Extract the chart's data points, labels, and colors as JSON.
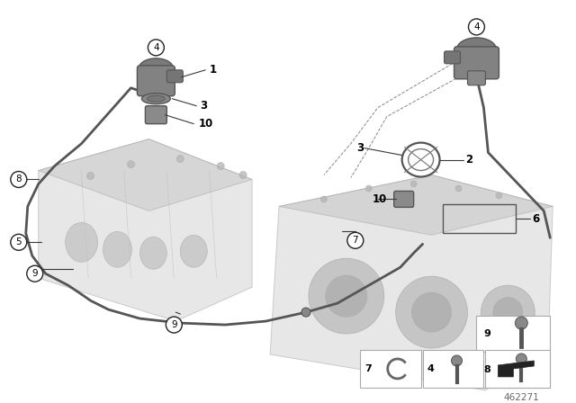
{
  "bg_color": "#ffffff",
  "diagram_number": "462271",
  "lc": "#3a3a3a",
  "label_color": "#111111",
  "engine_fill": "#d4d4d4",
  "engine_edge": "#aaaaaa",
  "engine_alpha": 0.55,
  "pump_fill": "#909090",
  "pump_edge": "#555555",
  "tube_color": "#555555",
  "tube_lw": 2.0,
  "dashed_color": "#888888",
  "circle_fill": "#ffffff",
  "circle_edge": "#222222"
}
